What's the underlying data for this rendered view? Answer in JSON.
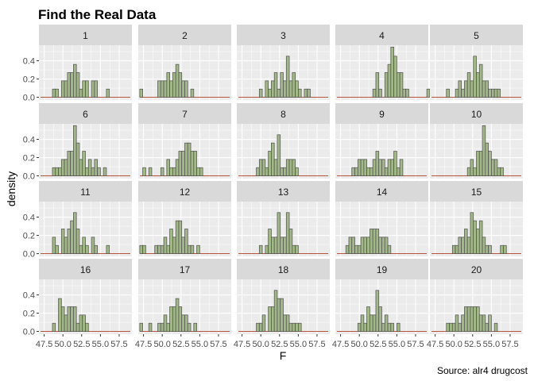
{
  "title": "Find the Real Data",
  "xlabel": "F",
  "ylabel": "density",
  "caption": "Source: alr4 drugcost",
  "colors": {
    "panel_bg": "#ebebeb",
    "grid_major": "#ffffff",
    "strip_bg": "#d9d9d9",
    "bar_fill": "#a3b888",
    "bar_stroke": "#4d4d4d",
    "baseline": "#b5533c",
    "tick_text": "#4d4d4d",
    "text": "#000000"
  },
  "chart_data": {
    "type": "bar",
    "facet_layout": "4 rows x 5 columns",
    "xlim": [
      46.8,
      59.2
    ],
    "ylim": [
      -0.03,
      0.57
    ],
    "x_ticks": [
      47.5,
      50.0,
      52.5,
      55.0,
      57.5
    ],
    "x_tick_labels": [
      "47.5",
      "50.0",
      "52.5",
      "55.0",
      "57.5"
    ],
    "y_ticks": [
      0.0,
      0.2,
      0.4
    ],
    "y_tick_labels": [
      "0.0",
      "0.2",
      "0.4"
    ],
    "bin_width": 0.4,
    "bin_start": 47.0,
    "grid": true,
    "panels": [
      {
        "label": "1",
        "values": [
          0,
          0,
          0,
          0,
          0.09,
          0.09,
          0,
          0.18,
          0.18,
          0.27,
          0.27,
          0.36,
          0.27,
          0.09,
          0.18,
          0.18,
          0,
          0.18,
          0.18,
          0,
          0,
          0,
          0.09,
          0,
          0,
          0,
          0,
          0,
          0,
          0,
          0
        ]
      },
      {
        "label": "2",
        "values": [
          0.09,
          0,
          0,
          0,
          0,
          0,
          0.18,
          0.18,
          0.18,
          0.27,
          0.18,
          0.27,
          0.36,
          0.27,
          0.18,
          0.18,
          0,
          0.09,
          0,
          0,
          0,
          0,
          0,
          0,
          0,
          0,
          0,
          0,
          0,
          0,
          0
        ]
      },
      {
        "label": "3",
        "values": [
          0,
          0,
          0,
          0,
          0,
          0,
          0,
          0.09,
          0,
          0.18,
          0.09,
          0.18,
          0.27,
          0.09,
          0.27,
          0.18,
          0.45,
          0.18,
          0.27,
          0.18,
          0.09,
          0,
          0.09,
          0.09,
          0,
          0,
          0,
          0,
          0,
          0,
          0
        ]
      },
      {
        "label": "4",
        "values": [
          0,
          0,
          0,
          0,
          0,
          0,
          0,
          0,
          0,
          0,
          0,
          0,
          0.09,
          0.27,
          0.09,
          0,
          0.27,
          0.36,
          0.55,
          0.45,
          0.27,
          0.27,
          0.09,
          0.09,
          0,
          0,
          0,
          0,
          0,
          0,
          0.09
        ]
      },
      {
        "label": "5",
        "values": [
          0,
          0,
          0,
          0,
          0,
          0.09,
          0,
          0,
          0.09,
          0.18,
          0.09,
          0.18,
          0.27,
          0.18,
          0.45,
          0.27,
          0.36,
          0.18,
          0.18,
          0.09,
          0.09,
          0.09,
          0.09,
          0,
          0,
          0,
          0,
          0,
          0,
          0,
          0
        ]
      },
      {
        "label": "6",
        "values": [
          0,
          0,
          0,
          0,
          0.09,
          0.09,
          0.09,
          0.18,
          0.18,
          0.27,
          0.27,
          0.55,
          0.36,
          0.18,
          0.27,
          0.09,
          0.18,
          0.09,
          0.18,
          0.09,
          0,
          0.09,
          0,
          0,
          0,
          0,
          0,
          0,
          0,
          0,
          0
        ]
      },
      {
        "label": "7",
        "values": [
          0,
          0.09,
          0,
          0.09,
          0,
          0,
          0,
          0.09,
          0,
          0.18,
          0.09,
          0.09,
          0.18,
          0.27,
          0.27,
          0.36,
          0.36,
          0.27,
          0.27,
          0.09,
          0.09,
          0,
          0,
          0,
          0,
          0,
          0,
          0,
          0,
          0,
          0
        ]
      },
      {
        "label": "8",
        "values": [
          0,
          0,
          0,
          0,
          0,
          0,
          0.09,
          0.18,
          0.18,
          0.09,
          0.27,
          0.36,
          0.18,
          0.45,
          0.09,
          0.09,
          0.18,
          0.18,
          0.18,
          0.09,
          0,
          0,
          0,
          0,
          0,
          0,
          0,
          0,
          0,
          0,
          0
        ]
      },
      {
        "label": "9",
        "values": [
          0,
          0,
          0,
          0,
          0,
          0.09,
          0.09,
          0.18,
          0.18,
          0.18,
          0.09,
          0.09,
          0.18,
          0.27,
          0.18,
          0.18,
          0.09,
          0.18,
          0.18,
          0.27,
          0.09,
          0.18,
          0,
          0,
          0,
          0,
          0,
          0,
          0,
          0,
          0
        ]
      },
      {
        "label": "10",
        "values": [
          0,
          0,
          0,
          0,
          0,
          0,
          0,
          0,
          0,
          0,
          0,
          0,
          0.09,
          0.18,
          0.09,
          0.27,
          0.27,
          0.55,
          0.36,
          0.27,
          0.18,
          0.18,
          0.09,
          0.09,
          0,
          0,
          0,
          0,
          0,
          0,
          0
        ]
      },
      {
        "label": "11",
        "values": [
          0,
          0,
          0,
          0,
          0.18,
          0.09,
          0,
          0.27,
          0.18,
          0.27,
          0.36,
          0.45,
          0.27,
          0.09,
          0.18,
          0.09,
          0,
          0.18,
          0.09,
          0,
          0,
          0,
          0.09,
          0,
          0,
          0,
          0,
          0,
          0,
          0,
          0
        ]
      },
      {
        "label": "12",
        "values": [
          0.09,
          0.09,
          0,
          0,
          0,
          0.09,
          0.09,
          0.09,
          0.18,
          0.09,
          0.27,
          0.18,
          0.36,
          0.36,
          0.18,
          0.27,
          0.09,
          0.09,
          0,
          0.09,
          0,
          0,
          0,
          0,
          0,
          0,
          0,
          0,
          0,
          0,
          0
        ]
      },
      {
        "label": "13",
        "values": [
          0,
          0,
          0,
          0,
          0,
          0,
          0,
          0.09,
          0,
          0.09,
          0.27,
          0.18,
          0.18,
          0.45,
          0.18,
          0.18,
          0.45,
          0.27,
          0.09,
          0.09,
          0,
          0,
          0,
          0,
          0,
          0,
          0,
          0,
          0,
          0,
          0
        ]
      },
      {
        "label": "14",
        "values": [
          0,
          0,
          0,
          0.09,
          0.18,
          0.18,
          0.09,
          0.09,
          0.18,
          0.18,
          0.18,
          0.27,
          0.27,
          0.27,
          0.18,
          0.18,
          0.18,
          0.09,
          0,
          0,
          0,
          0,
          0,
          0,
          0,
          0,
          0,
          0,
          0,
          0,
          0
        ]
      },
      {
        "label": "15",
        "values": [
          0,
          0,
          0,
          0,
          0,
          0,
          0,
          0.09,
          0.09,
          0.18,
          0.18,
          0.27,
          0.18,
          0.45,
          0.36,
          0.27,
          0.36,
          0.18,
          0.09,
          0.09,
          0,
          0,
          0,
          0.09,
          0.09,
          0,
          0,
          0,
          0,
          0,
          0
        ]
      },
      {
        "label": "16",
        "values": [
          0,
          0,
          0,
          0,
          0.09,
          0,
          0.36,
          0.27,
          0.18,
          0.27,
          0.27,
          0.27,
          0.09,
          0.18,
          0.18,
          0.09,
          0,
          0,
          0,
          0,
          0,
          0,
          0,
          0,
          0,
          0,
          0,
          0,
          0,
          0,
          0
        ]
      },
      {
        "label": "17",
        "values": [
          0.09,
          0,
          0,
          0.09,
          0,
          0,
          0.09,
          0.09,
          0.18,
          0.09,
          0.27,
          0.27,
          0.36,
          0.27,
          0.18,
          0.18,
          0.09,
          0,
          0.09,
          0,
          0,
          0,
          0,
          0,
          0,
          0,
          0,
          0,
          0,
          0,
          0
        ]
      },
      {
        "label": "18",
        "values": [
          0,
          0,
          0,
          0,
          0,
          0,
          0.09,
          0.09,
          0.18,
          0,
          0.27,
          0.27,
          0.45,
          0.36,
          0.36,
          0.18,
          0.18,
          0.09,
          0.09,
          0.09,
          0.09,
          0,
          0,
          0,
          0,
          0,
          0,
          0,
          0,
          0,
          0
        ]
      },
      {
        "label": "19",
        "values": [
          0,
          0,
          0,
          0,
          0,
          0,
          0,
          0.09,
          0.18,
          0.09,
          0.27,
          0.18,
          0.18,
          0.45,
          0.27,
          0.09,
          0.18,
          0.09,
          0.09,
          0,
          0.09,
          0,
          0,
          0,
          0,
          0,
          0,
          0,
          0,
          0,
          0
        ]
      },
      {
        "label": "20",
        "values": [
          0,
          0,
          0,
          0,
          0,
          0.09,
          0.09,
          0.09,
          0.18,
          0.09,
          0.18,
          0.27,
          0.27,
          0.27,
          0.27,
          0.27,
          0.18,
          0.18,
          0.09,
          0.18,
          0,
          0.09,
          0,
          0,
          0,
          0,
          0,
          0,
          0,
          0,
          0
        ]
      }
    ]
  }
}
